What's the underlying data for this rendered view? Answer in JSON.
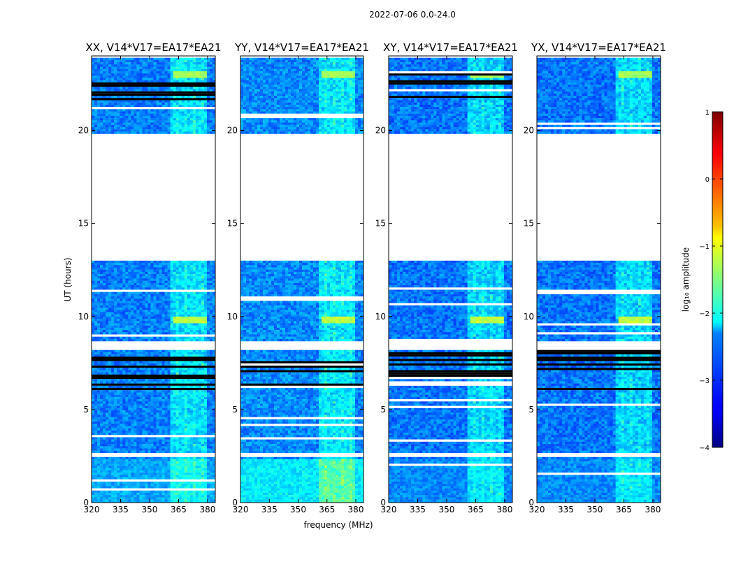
{
  "figure": {
    "suptitle": "2022-07-06 0.0-24.0"
  },
  "chart_data": {
    "type": "heatmap",
    "title": "2022-07-06 0.0-24.0",
    "xlabel": "frequency (MHz)",
    "ylabel": "UT (hours)",
    "xlim": [
      320,
      384
    ],
    "ylim": [
      0,
      24
    ],
    "xticks": [
      320,
      335,
      350,
      365,
      380
    ],
    "yticks": [
      0,
      5,
      10,
      15,
      20
    ],
    "panels": [
      {
        "name": "XX",
        "title": "XX, V14*V17=EA17*EA21",
        "baseline_log_amp": -2.75,
        "low_time_log_amp": -2.55
      },
      {
        "name": "YY",
        "title": "YY, V14*V17=EA17*EA21",
        "baseline_log_amp": -2.7,
        "low_time_log_amp": -2.2
      },
      {
        "name": "XY",
        "title": "XY, V14*V17=EA17*EA21",
        "baseline_log_amp": -2.8,
        "low_time_log_amp": -2.7
      },
      {
        "name": "YX",
        "title": "YX, V14*V17=EA17*EA21",
        "baseline_log_amp": -2.8,
        "low_time_log_amp": -2.7
      }
    ],
    "data_present_hours": [
      [
        0,
        2.45
      ],
      [
        2.75,
        8.2
      ],
      [
        8.7,
        13.0
      ],
      [
        19.9,
        23.9
      ]
    ],
    "flagged_gap_hours": [
      13.0,
      19.9
    ],
    "rfi_band_mhz": [
      361,
      380
    ],
    "bright_events": [
      {
        "ut_hours": 9.9,
        "freq_mhz": [
          362,
          380
        ],
        "log_amp": -1.2
      },
      {
        "ut_hours": 23.1,
        "freq_mhz": [
          362,
          380
        ],
        "log_amp": -1.3
      }
    ],
    "colorbar": {
      "label": "log₁₀ amplitude",
      "range": [
        -4,
        1
      ],
      "ticks": [
        1,
        0,
        -1,
        -2,
        -3,
        -4
      ],
      "tick_labels": [
        "1",
        "0",
        "−1",
        "−2",
        "−3",
        "−4"
      ],
      "colormap": "jet"
    }
  }
}
